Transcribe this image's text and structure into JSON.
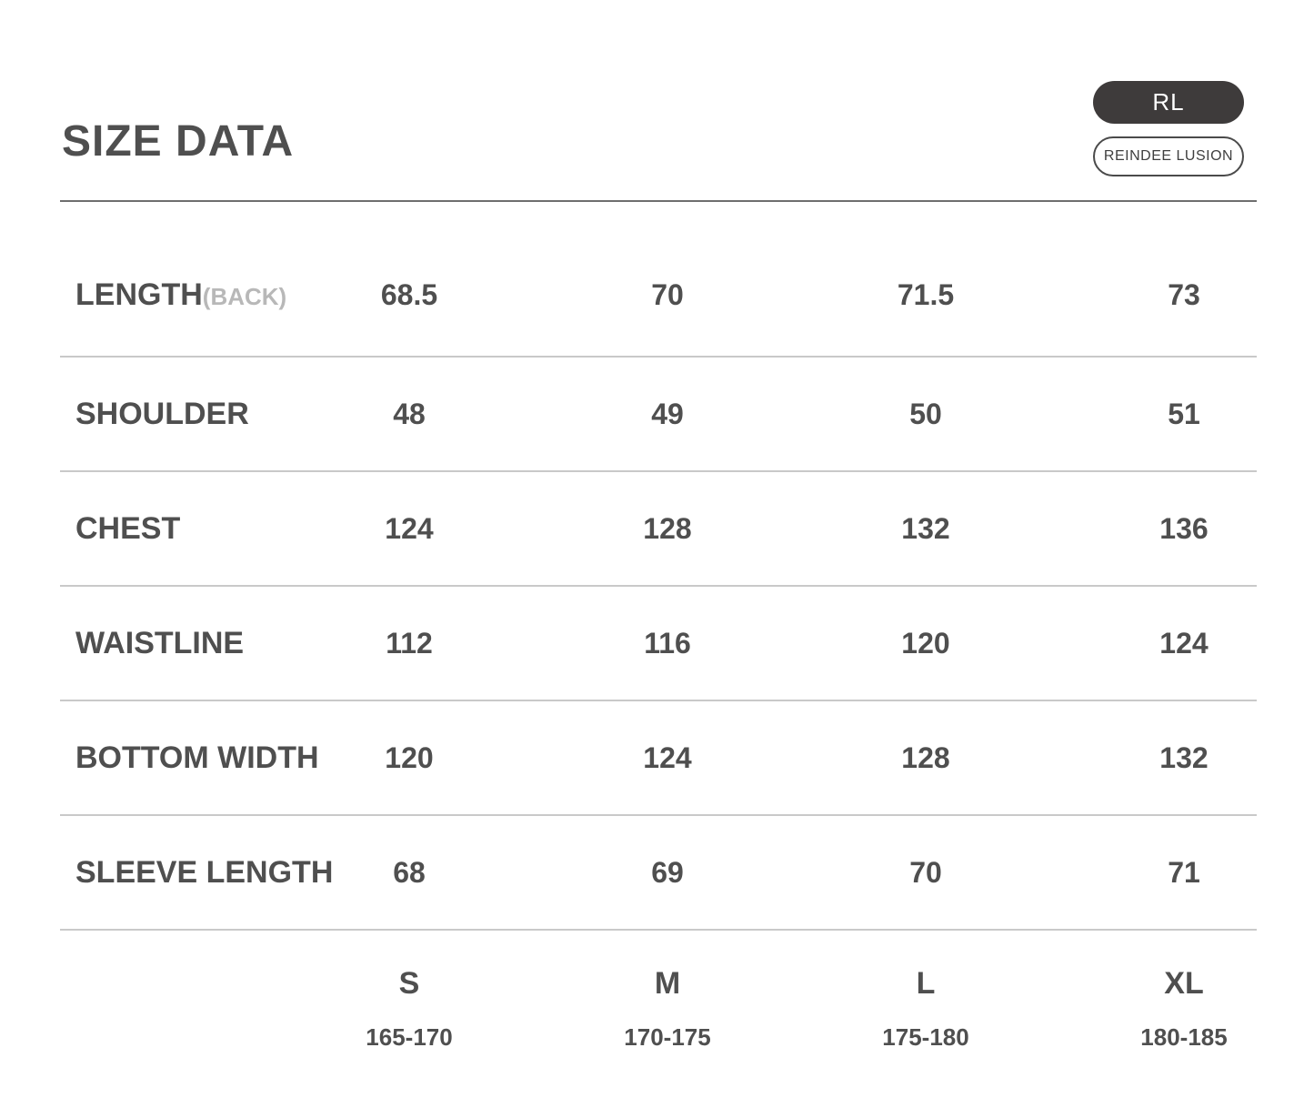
{
  "header": {
    "title": "SIZE DATA",
    "badge_rl": "RL",
    "badge_brand": "REINDEE LUSION"
  },
  "colors": {
    "text_dark": "#4f4f4f",
    "text_light": "#b8b8b8",
    "divider_top": "#6e6e6e",
    "divider_row": "#c9c9c9",
    "pill_background": "#3e3b3b",
    "pill_text": "#ffffff"
  },
  "chart_data": {
    "type": "table",
    "title": "SIZE DATA",
    "columns": [
      "S",
      "M",
      "L",
      "XL"
    ],
    "height_ranges": [
      "165-170",
      "170-175",
      "175-180",
      "180-185"
    ],
    "rows": [
      {
        "label": "LENGTH",
        "label_suffix": "(BACK)",
        "values": [
          "68.5",
          "70",
          "71.5",
          "73"
        ]
      },
      {
        "label": "SHOULDER",
        "label_suffix": "",
        "values": [
          "48",
          "49",
          "50",
          "51"
        ]
      },
      {
        "label": "CHEST",
        "label_suffix": "",
        "values": [
          "124",
          "128",
          "132",
          "136"
        ]
      },
      {
        "label": "WAISTLINE",
        "label_suffix": "",
        "values": [
          "112",
          "116",
          "120",
          "124"
        ]
      },
      {
        "label": "BOTTOM WIDTH",
        "label_suffix": "",
        "values": [
          "120",
          "124",
          "128",
          "132"
        ]
      },
      {
        "label": "SLEEVE LENGTH",
        "label_suffix": "",
        "values": [
          "68",
          "69",
          "70",
          "71"
        ]
      }
    ]
  }
}
